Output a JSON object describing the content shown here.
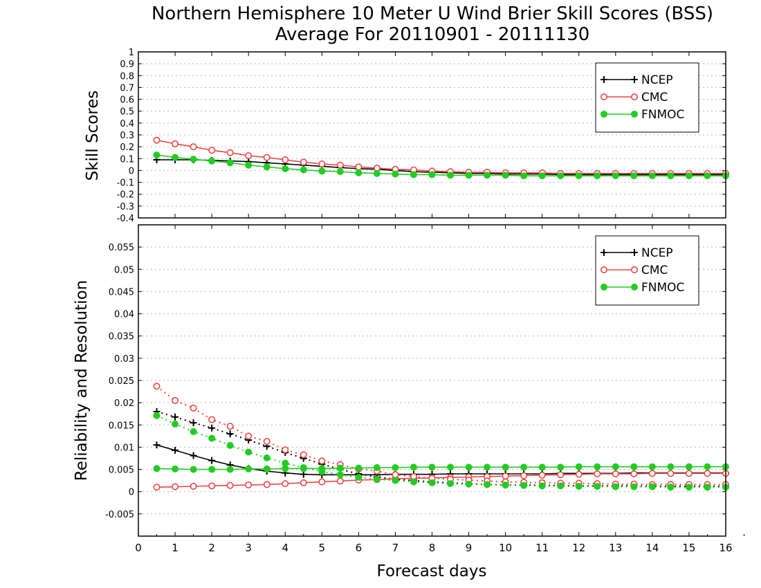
{
  "chart_data": [
    {
      "type": "line",
      "title": "Northern Hemisphere 10 Meter U Wind Brier Skill Scores (BSS)",
      "subtitle": "Average For 20110901 - 20111130",
      "ylabel": "Skill Scores",
      "xlabel": "",
      "xlim": [
        0,
        16
      ],
      "ylim": [
        -0.4,
        1
      ],
      "yticks": [
        "-0.4",
        "-0.3",
        "-0.2",
        "-0.1",
        "0",
        "0.1",
        "0.2",
        "0.3",
        "0.4",
        "0.5",
        "0.6",
        "0.7",
        "0.8",
        "0.9",
        "1"
      ],
      "grid": true,
      "legend": "top-right",
      "x": [
        0.5,
        1,
        1.5,
        2,
        2.5,
        3,
        3.5,
        4,
        4.5,
        5,
        5.5,
        6,
        6.5,
        7,
        7.5,
        8,
        8.5,
        9,
        9.5,
        10,
        10.5,
        11,
        11.5,
        12,
        12.5,
        13,
        13.5,
        14,
        14.5,
        15,
        15.5,
        16
      ],
      "series": [
        {
          "name": "NCEP",
          "color": "#000000",
          "marker": "plus",
          "values": [
            0.09,
            0.09,
            0.09,
            0.085,
            0.08,
            0.075,
            0.065,
            0.055,
            0.045,
            0.035,
            0.025,
            0.015,
            0.01,
            0.0,
            -0.01,
            -0.015,
            -0.02,
            -0.025,
            -0.025,
            -0.03,
            -0.03,
            -0.03,
            -0.035,
            -0.035,
            -0.035,
            -0.035,
            -0.035,
            -0.035,
            -0.035,
            -0.035,
            -0.035,
            -0.035
          ]
        },
        {
          "name": "CMC",
          "color": "#ee4444",
          "marker": "circle-open",
          "values": [
            0.255,
            0.225,
            0.2,
            0.17,
            0.15,
            0.125,
            0.11,
            0.09,
            0.07,
            0.055,
            0.045,
            0.03,
            0.02,
            0.01,
            0.005,
            -0.005,
            -0.01,
            -0.015,
            -0.015,
            -0.02,
            -0.02,
            -0.02,
            -0.025,
            -0.025,
            -0.025,
            -0.025,
            -0.025,
            -0.025,
            -0.025,
            -0.025,
            -0.025,
            -0.025
          ]
        },
        {
          "name": "FNMOC",
          "color": "#22cc22",
          "marker": "circle-filled",
          "values": [
            0.13,
            0.11,
            0.095,
            0.08,
            0.065,
            0.045,
            0.03,
            0.015,
            0.005,
            -0.005,
            -0.01,
            -0.02,
            -0.025,
            -0.03,
            -0.035,
            -0.035,
            -0.04,
            -0.04,
            -0.04,
            -0.04,
            -0.045,
            -0.045,
            -0.045,
            -0.045,
            -0.045,
            -0.045,
            -0.045,
            -0.045,
            -0.045,
            -0.045,
            -0.045,
            -0.045
          ]
        }
      ]
    },
    {
      "type": "line",
      "title": "",
      "ylabel": "Reliability and Resolution",
      "xlabel": "Forecast days",
      "xlim": [
        0,
        16
      ],
      "ylim": [
        -0.01,
        0.06
      ],
      "yticks": [
        "-0.005",
        "0",
        "0.005",
        "0.01",
        "0.015",
        "0.02",
        "0.025",
        "0.03",
        "0.035",
        "0.04",
        "0.045",
        "0.05",
        "0.055"
      ],
      "xticks": [
        "0",
        "1",
        "2",
        "3",
        "4",
        "5",
        "6",
        "7",
        "8",
        "9",
        "10",
        "11",
        "12",
        "13",
        "14",
        "15",
        "16"
      ],
      "grid": true,
      "legend": "top-right",
      "legend_entries": [
        "NCEP",
        "CMC",
        "FNMOC"
      ],
      "x": [
        0.5,
        1,
        1.5,
        2,
        2.5,
        3,
        3.5,
        4,
        4.5,
        5,
        5.5,
        6,
        6.5,
        7,
        7.5,
        8,
        8.5,
        9,
        9.5,
        10,
        10.5,
        11,
        11.5,
        12,
        12.5,
        13,
        13.5,
        14,
        14.5,
        15,
        15.5,
        16
      ],
      "series": [
        {
          "legend": "NCEP",
          "style": "solid",
          "color": "#000000",
          "marker": "plus",
          "values": [
            0.0105,
            0.0093,
            0.0081,
            0.007,
            0.006,
            0.0052,
            0.0046,
            0.0042,
            0.0039,
            0.0038,
            0.0038,
            0.0038,
            0.0038,
            0.0039,
            0.0039,
            0.0039,
            0.004,
            0.004,
            0.004,
            0.004,
            0.004,
            0.004,
            0.0041,
            0.0041,
            0.0041,
            0.0041,
            0.0042,
            0.0042,
            0.0042,
            0.0042,
            0.0042,
            0.0042
          ]
        },
        {
          "legend": "NCEP",
          "style": "dotted",
          "color": "#000000",
          "marker": "plus",
          "values": [
            0.018,
            0.0168,
            0.0155,
            0.0143,
            0.013,
            0.0116,
            0.0102,
            0.0088,
            0.0075,
            0.0062,
            0.005,
            0.004,
            0.0033,
            0.0028,
            0.0025,
            0.0022,
            0.002,
            0.0018,
            0.0016,
            0.0015,
            0.0015,
            0.0014,
            0.0014,
            0.0013,
            0.0013,
            0.0013,
            0.0013,
            0.0012,
            0.0012,
            0.0012,
            0.0012,
            0.0012
          ]
        },
        {
          "legend": "CMC",
          "style": "solid",
          "color": "#ee4444",
          "marker": "circle-open",
          "values": [
            0.001,
            0.0011,
            0.0012,
            0.0013,
            0.0014,
            0.0015,
            0.0016,
            0.0018,
            0.002,
            0.0022,
            0.0024,
            0.0026,
            0.0027,
            0.0029,
            0.003,
            0.0031,
            0.0032,
            0.0033,
            0.0034,
            0.0035,
            0.0036,
            0.0037,
            0.0038,
            0.0039,
            0.004,
            0.004,
            0.004,
            0.0041,
            0.0041,
            0.0041,
            0.0041,
            0.0041
          ]
        },
        {
          "legend": "CMC",
          "style": "dotted",
          "color": "#ee4444",
          "marker": "circle-open",
          "values": [
            0.0237,
            0.0205,
            0.0188,
            0.0162,
            0.0147,
            0.0125,
            0.0113,
            0.0094,
            0.0083,
            0.0069,
            0.0061,
            0.0051,
            0.0046,
            0.0038,
            0.0034,
            0.003,
            0.0028,
            0.0026,
            0.0024,
            0.0022,
            0.0021,
            0.002,
            0.0019,
            0.0019,
            0.0018,
            0.0017,
            0.0017,
            0.0016,
            0.0016,
            0.0016,
            0.0016,
            0.0016
          ]
        },
        {
          "legend": "FNMOC",
          "style": "solid",
          "color": "#22cc22",
          "marker": "circle-filled",
          "values": [
            0.0052,
            0.0051,
            0.005,
            0.005,
            0.005,
            0.0051,
            0.0051,
            0.0052,
            0.0052,
            0.0052,
            0.0053,
            0.0053,
            0.0054,
            0.0054,
            0.0055,
            0.0055,
            0.0055,
            0.0055,
            0.0055,
            0.0055,
            0.0055,
            0.0055,
            0.0055,
            0.0056,
            0.0056,
            0.0056,
            0.0056,
            0.0056,
            0.0056,
            0.0056,
            0.0056,
            0.0056
          ]
        },
        {
          "legend": "FNMOC",
          "style": "dotted",
          "color": "#22cc22",
          "marker": "circle-filled",
          "values": [
            0.0171,
            0.0152,
            0.0135,
            0.012,
            0.0104,
            0.0089,
            0.0076,
            0.0064,
            0.0054,
            0.0045,
            0.0038,
            0.0032,
            0.0028,
            0.0025,
            0.0022,
            0.002,
            0.0018,
            0.0017,
            0.0016,
            0.0015,
            0.0014,
            0.0013,
            0.0013,
            0.0012,
            0.0012,
            0.0011,
            0.0011,
            0.0011,
            0.001,
            0.001,
            0.001,
            0.001
          ]
        }
      ]
    }
  ]
}
